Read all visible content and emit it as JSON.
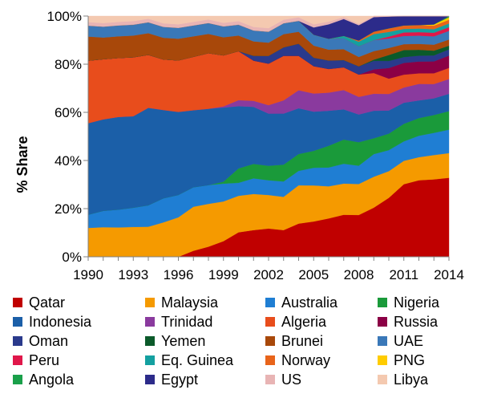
{
  "chart_data": {
    "type": "area",
    "stacked": true,
    "title": "",
    "xlabel": "",
    "ylabel": "% Share",
    "ylim": [
      0,
      100
    ],
    "y_ticks": [
      "0%",
      "20%",
      "40%",
      "60%",
      "80%",
      "100%"
    ],
    "y_tick_values": [
      0,
      20,
      40,
      60,
      80,
      100
    ],
    "x_ticks": [
      "1990",
      "1993",
      "1996",
      "1999",
      "2002",
      "2005",
      "2008",
      "2011",
      "2014"
    ],
    "x": [
      1990,
      1991,
      1992,
      1993,
      1994,
      1995,
      1996,
      1997,
      1998,
      1999,
      2000,
      2001,
      2002,
      2003,
      2004,
      2005,
      2006,
      2007,
      2008,
      2009,
      2010,
      2011,
      2012,
      2013,
      2014
    ],
    "grid": false,
    "legend_position": "bottom",
    "series": [
      {
        "name": "Qatar",
        "color": "#c00000",
        "values": [
          0,
          0,
          0,
          0,
          0,
          0,
          0,
          2.5,
          4.2,
          6.5,
          10.2,
          11.1,
          11.7,
          11.1,
          13.8,
          14.6,
          15.9,
          17.4,
          17.8,
          20.2,
          25,
          31,
          32.5,
          32.5,
          32
        ]
      },
      {
        "name": "Malaysia",
        "color": "#f59a00",
        "values": [
          12,
          12.3,
          12.2,
          12.4,
          12.5,
          14.3,
          16.4,
          18.3,
          17.8,
          16.5,
          15.2,
          15,
          13.9,
          13.8,
          15.9,
          14.9,
          13.3,
          12.9,
          13.2,
          12.7,
          11.3,
          10,
          9.8,
          10.2,
          10
        ]
      },
      {
        "name": "Australia",
        "color": "#1f7ed3",
        "values": [
          5.5,
          6.8,
          7.4,
          8,
          8.9,
          10,
          9.3,
          8.1,
          7.8,
          7.4,
          5.4,
          6.5,
          6.1,
          6.4,
          6,
          7.3,
          7.8,
          8.2,
          7.8,
          9.3,
          8.9,
          8.3,
          9.1,
          9.3,
          9.5
        ]
      },
      {
        "name": "Nigeria",
        "color": "#1a9a3a",
        "values": [
          0,
          0,
          0,
          0,
          0,
          0,
          0,
          0,
          0,
          0.8,
          6,
          6,
          6,
          7,
          7,
          7,
          9,
          10,
          10,
          6.5,
          7,
          7.5,
          7.5,
          7.5,
          7.5
        ]
      },
      {
        "name": "Indonesia",
        "color": "#1b5fa8",
        "values": [
          38,
          38,
          38.5,
          38,
          40.5,
          36.7,
          34.5,
          32,
          31.7,
          30.8,
          25.9,
          23.7,
          21.6,
          21.2,
          19,
          16.2,
          14.5,
          12.5,
          11.8,
          11.3,
          9.8,
          9,
          7.5,
          7,
          7
        ]
      },
      {
        "name": "Trinidad",
        "color": "#8a3a9e",
        "values": [
          0,
          0,
          0,
          0,
          0,
          0,
          0,
          0,
          0,
          0.5,
          2.5,
          2.5,
          3.5,
          5.5,
          7.5,
          7.5,
          7.5,
          8,
          7.5,
          7,
          7,
          6.5,
          7,
          6,
          6
        ]
      },
      {
        "name": "Algeria",
        "color": "#e84d1c",
        "values": [
          26,
          25,
          24.5,
          24.5,
          22,
          21,
          21.4,
          22.2,
          23.1,
          21.2,
          20.4,
          16.7,
          17.2,
          18.5,
          14.3,
          11.3,
          9.8,
          9.4,
          9.5,
          8.5,
          6.5,
          5.5,
          4.5,
          4.5,
          4.5
        ]
      },
      {
        "name": "Russia",
        "color": "#8b0045",
        "values": [
          0,
          0,
          0,
          0,
          0,
          0,
          0,
          0,
          0,
          0,
          0,
          0,
          0,
          0,
          0,
          0,
          0,
          0,
          0,
          1.5,
          4.5,
          5,
          5,
          5,
          5
        ]
      },
      {
        "name": "Oman",
        "color": "#2a3a8c",
        "values": [
          0,
          0,
          0,
          0,
          0,
          0,
          0,
          0,
          0,
          0,
          0,
          2,
          3.2,
          3.5,
          5,
          3.5,
          3.5,
          3,
          3.5,
          3.5,
          3,
          2.5,
          2.5,
          2.5,
          2.5
        ]
      },
      {
        "name": "Yemen",
        "color": "#0b5a2a",
        "values": [
          0,
          0,
          0,
          0,
          0,
          0,
          0,
          0,
          0,
          0,
          0,
          0,
          0,
          0,
          0,
          0,
          0,
          0,
          0,
          0.5,
          2.5,
          3,
          2.5,
          2,
          1.5
        ]
      },
      {
        "name": "Brunei",
        "color": "#a8480a",
        "values": [
          10,
          9,
          9,
          9,
          9,
          9,
          9,
          8.5,
          8,
          7.5,
          6.5,
          6,
          5.5,
          5.5,
          5,
          5,
          4.5,
          4.5,
          4,
          3.5,
          3,
          2.5,
          2.5,
          2.5,
          2.5
        ]
      },
      {
        "name": "UAE",
        "color": "#3a78b8",
        "values": [
          4.5,
          4.5,
          4.5,
          4.5,
          4.5,
          4.5,
          4.5,
          4.5,
          4.5,
          4.5,
          4.5,
          4.5,
          4.5,
          4.5,
          4.5,
          4.5,
          4.5,
          4.5,
          4.5,
          4.5,
          4,
          3.5,
          3.5,
          3.5,
          3.5
        ]
      },
      {
        "name": "Peru",
        "color": "#e0174a",
        "values": [
          0,
          0,
          0,
          0,
          0,
          0,
          0,
          0,
          0,
          0,
          0,
          0,
          0,
          0,
          0,
          0,
          0,
          0,
          0,
          0,
          0.8,
          1.5,
          1.5,
          1.5,
          1.5
        ]
      },
      {
        "name": "Eq. Guinea",
        "color": "#14a0a0",
        "values": [
          0,
          0,
          0,
          0,
          0,
          0,
          0,
          0,
          0,
          0,
          0,
          0,
          0,
          0,
          0,
          0,
          0,
          1,
          2,
          2.5,
          2,
          1.5,
          1.5,
          1.5,
          1.5
        ]
      },
      {
        "name": "Norway",
        "color": "#e8641a",
        "values": [
          0,
          0,
          0,
          0,
          0,
          0,
          0,
          0,
          0,
          0,
          0,
          0,
          0,
          0,
          0,
          0,
          0,
          0,
          0.5,
          1,
          1.5,
          1.5,
          1.5,
          1.5,
          1.5
        ]
      },
      {
        "name": "PNG",
        "color": "#ffcc00",
        "values": [
          0,
          0,
          0,
          0,
          0,
          0,
          0,
          0,
          0,
          0,
          0,
          0,
          0,
          0,
          0,
          0,
          0,
          0,
          0,
          0,
          0,
          0,
          0,
          0.5,
          1
        ]
      },
      {
        "name": "Angola",
        "color": "#1aa04a",
        "values": [
          0,
          0,
          0,
          0,
          0,
          0,
          0,
          0,
          0,
          0,
          0,
          0,
          0,
          0,
          0,
          0,
          0,
          0,
          0,
          0,
          0,
          0,
          0,
          0,
          0.5
        ]
      },
      {
        "name": "Egypt",
        "color": "#2c2b8a",
        "values": [
          0,
          0,
          0,
          0,
          0,
          0,
          0,
          0,
          0,
          0,
          0,
          0,
          0,
          0,
          0,
          3,
          6,
          7,
          6.5,
          6,
          5,
          4,
          3.8,
          3.5,
          0
        ]
      },
      {
        "name": "US",
        "color": "#e8b4b4",
        "values": [
          1.5,
          1.5,
          1.5,
          1.5,
          1.5,
          1.5,
          1.5,
          1.5,
          1.5,
          1.5,
          1.5,
          1.5,
          1.5,
          1.5,
          1.5,
          1.3,
          1.1,
          0.8,
          0.6,
          0.4,
          0.2,
          0,
          0,
          0,
          0
        ]
      },
      {
        "name": "Libya",
        "color": "#f4c9b0",
        "values": [
          2.5,
          2.9,
          2.4,
          2.1,
          1.1,
          3,
          3.4,
          2.4,
          1.4,
          2.8,
          2.1,
          4.5,
          5,
          1.5,
          0.5,
          3.4,
          2.3,
          0.4,
          3.3,
          0,
          0,
          0,
          0,
          0,
          0
        ]
      }
    ]
  }
}
